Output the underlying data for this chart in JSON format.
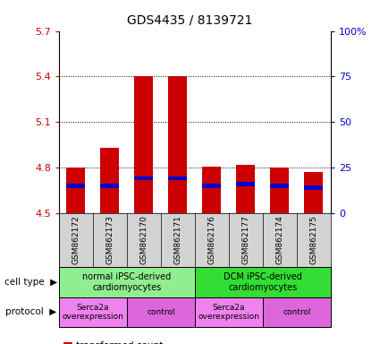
{
  "title": "GDS4435 / 8139721",
  "samples": [
    "GSM862172",
    "GSM862173",
    "GSM862170",
    "GSM862171",
    "GSM862176",
    "GSM862177",
    "GSM862174",
    "GSM862175"
  ],
  "transformed_counts": [
    4.8,
    4.93,
    5.4,
    5.4,
    4.81,
    4.82,
    4.8,
    4.77
  ],
  "percentile_vals": [
    4.68,
    4.68,
    4.73,
    4.73,
    4.68,
    4.69,
    4.68,
    4.67
  ],
  "ylim_left": [
    4.5,
    5.7
  ],
  "ylim_right": [
    0,
    100
  ],
  "yticks_left": [
    4.5,
    4.8,
    5.1,
    5.4,
    5.7
  ],
  "yticks_right": [
    0,
    25,
    50,
    75,
    100
  ],
  "ytick_labels_left": [
    "4.5",
    "4.8",
    "5.1",
    "5.4",
    "5.7"
  ],
  "ytick_labels_right": [
    "0",
    "25",
    "50",
    "75",
    "100%"
  ],
  "bar_color": "#cc0000",
  "percentile_color": "#0000cc",
  "bar_width": 0.55,
  "cell_type_groups": [
    {
      "label": "normal iPSC-derived\ncardiomyocytes",
      "start": 0,
      "end": 4,
      "color": "#90ee90"
    },
    {
      "label": "DCM iPSC-derived\ncardiomyocytes",
      "start": 4,
      "end": 8,
      "color": "#33dd33"
    }
  ],
  "protocol_groups": [
    {
      "label": "Serca2a\noverexpression",
      "start": 0,
      "end": 2,
      "color": "#ee82ee"
    },
    {
      "label": "control",
      "start": 2,
      "end": 4,
      "color": "#dd66dd"
    },
    {
      "label": "Serca2a\noverexpression",
      "start": 4,
      "end": 6,
      "color": "#ee82ee"
    },
    {
      "label": "control",
      "start": 6,
      "end": 8,
      "color": "#dd66dd"
    }
  ],
  "left_label_color": "#cc0000",
  "right_label_color": "#0000cc",
  "sample_bg_color": "#d3d3d3",
  "fig_width": 4.25,
  "fig_height": 3.84,
  "dpi": 100
}
